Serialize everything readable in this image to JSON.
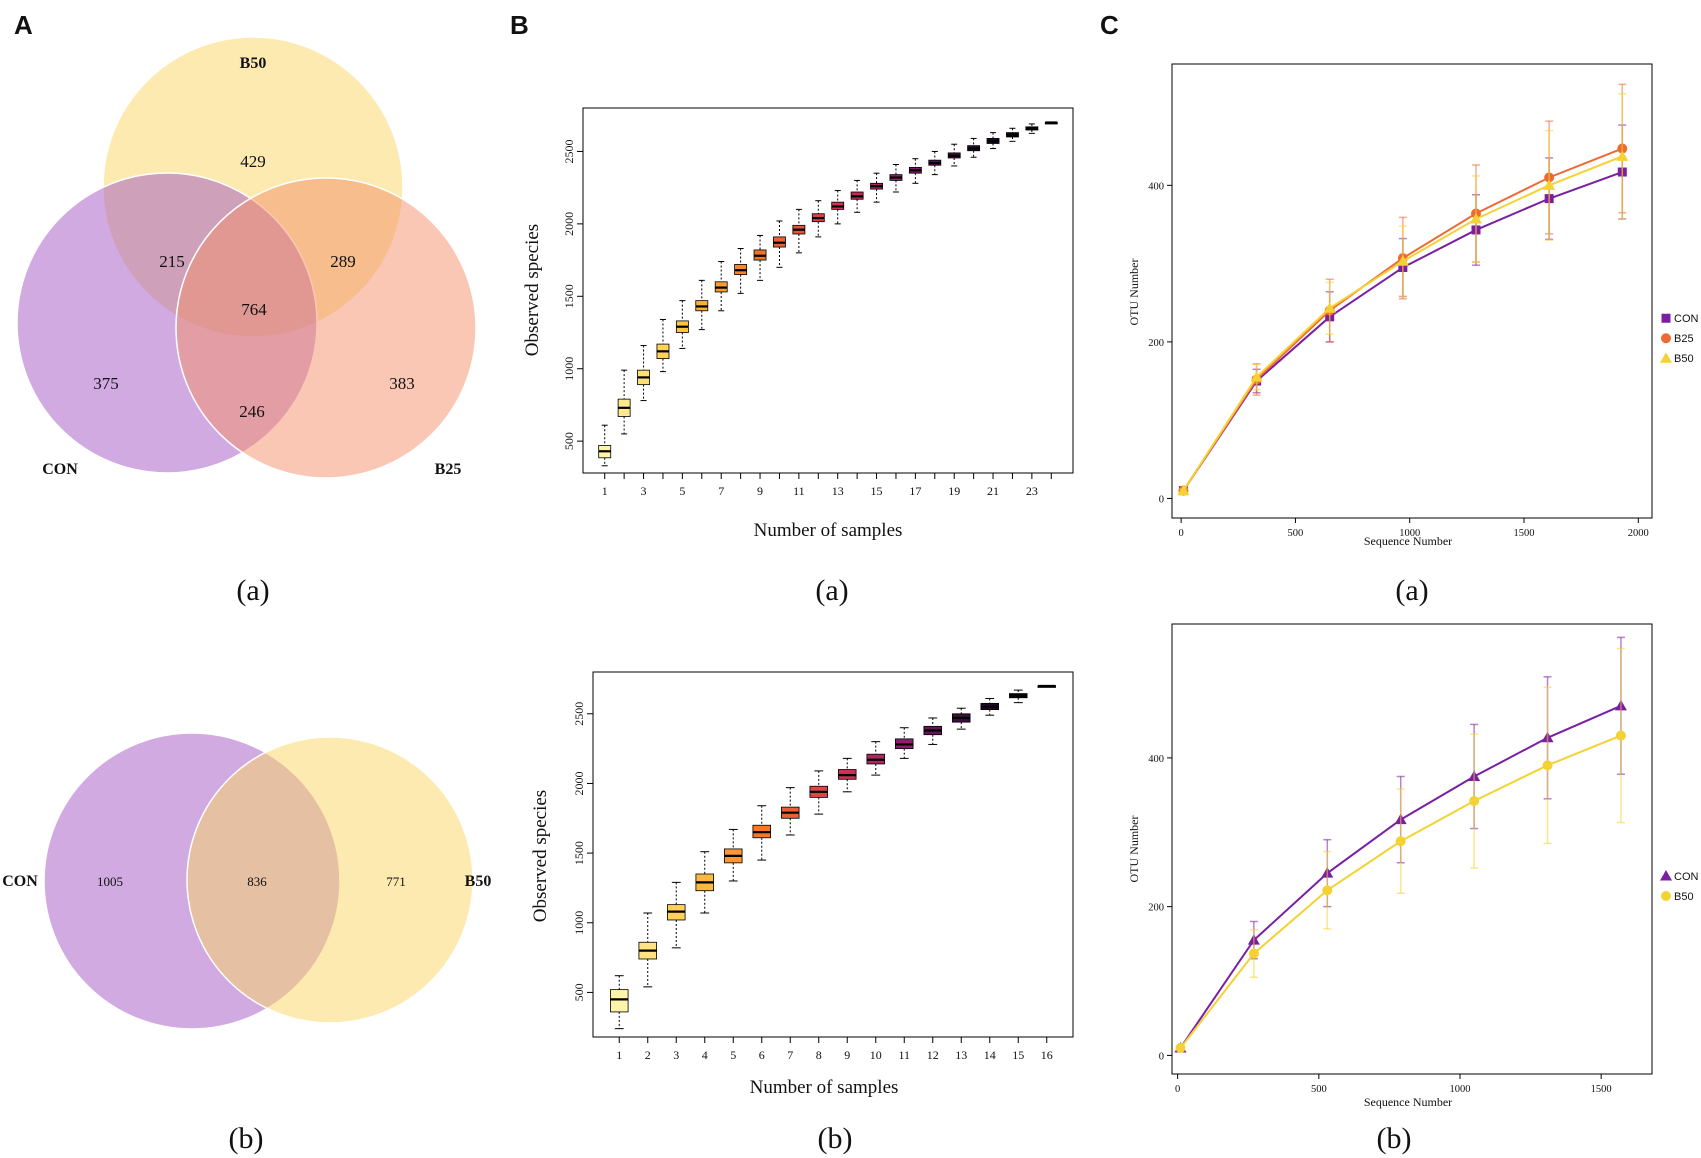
{
  "panel_labels": {
    "A": "A",
    "B": "B",
    "C": "C"
  },
  "sub_labels": {
    "a": "(a)",
    "b": "(b)"
  },
  "chart_data": [
    {
      "id": "A_a",
      "type": "venn",
      "sets": [
        "CON",
        "B50",
        "B25"
      ],
      "regions": {
        "B50_only": 429,
        "CON_only": 375,
        "B25_only": 383,
        "CON_B50": 215,
        "B50_B25": 289,
        "CON_B25": 246,
        "all": 764
      },
      "colors": {
        "CON": "#a156c4",
        "B50": "#fbd563",
        "B25": "#f4906a"
      }
    },
    {
      "id": "A_b",
      "type": "venn",
      "sets": [
        "CON",
        "B50"
      ],
      "regions": {
        "CON_only": 1005,
        "both": 836,
        "B50_only": 771
      },
      "colors": {
        "CON": "#a156c4",
        "B50": "#fbd563"
      }
    },
    {
      "id": "B_a",
      "type": "box",
      "xlabel": "Number of samples",
      "ylabel": "Observed species",
      "x": [
        1,
        2,
        3,
        4,
        5,
        6,
        7,
        8,
        9,
        10,
        11,
        12,
        13,
        14,
        15,
        16,
        17,
        18,
        19,
        20,
        21,
        22,
        23,
        24
      ],
      "xticks": [
        1,
        3,
        5,
        7,
        9,
        11,
        13,
        15,
        17,
        19,
        21,
        23
      ],
      "yticks": [
        500,
        1000,
        1500,
        2000,
        2500
      ],
      "ylim": [
        280,
        2800
      ],
      "median": [
        430,
        730,
        940,
        1120,
        1290,
        1430,
        1560,
        1680,
        1780,
        1870,
        1960,
        2040,
        2120,
        2190,
        2260,
        2320,
        2370,
        2420,
        2470,
        2520,
        2570,
        2610,
        2660,
        2700
      ],
      "q1": [
        385,
        670,
        890,
        1070,
        1250,
        1400,
        1530,
        1650,
        1750,
        1840,
        1930,
        2015,
        2100,
        2170,
        2240,
        2300,
        2350,
        2405,
        2455,
        2505,
        2555,
        2600,
        2648,
        2700
      ],
      "q3": [
        470,
        790,
        990,
        1170,
        1330,
        1470,
        1600,
        1720,
        1820,
        1910,
        1990,
        2070,
        2150,
        2220,
        2280,
        2340,
        2390,
        2440,
        2490,
        2540,
        2590,
        2630,
        2670,
        2700
      ],
      "wlo": [
        330,
        550,
        780,
        980,
        1140,
        1270,
        1400,
        1520,
        1610,
        1700,
        1800,
        1910,
        2000,
        2080,
        2150,
        2220,
        2280,
        2340,
        2400,
        2460,
        2520,
        2570,
        2625,
        2700
      ],
      "whi": [
        610,
        990,
        1160,
        1340,
        1470,
        1610,
        1740,
        1830,
        1920,
        2020,
        2100,
        2160,
        2230,
        2300,
        2350,
        2410,
        2450,
        2500,
        2550,
        2590,
        2630,
        2660,
        2690,
        2700
      ]
    },
    {
      "id": "B_b",
      "type": "box",
      "xlabel": "Number of samples",
      "ylabel": "Observed species",
      "x": [
        1,
        2,
        3,
        4,
        5,
        6,
        7,
        8,
        9,
        10,
        11,
        12,
        13,
        14,
        15,
        16
      ],
      "xticks": [
        1,
        2,
        3,
        4,
        5,
        6,
        7,
        8,
        9,
        10,
        11,
        12,
        13,
        14,
        15,
        16
      ],
      "yticks": [
        500,
        1000,
        1500,
        2000,
        2500
      ],
      "ylim": [
        180,
        2800
      ],
      "median": [
        450,
        800,
        1080,
        1290,
        1480,
        1650,
        1790,
        1940,
        2060,
        2170,
        2280,
        2380,
        2470,
        2550,
        2630,
        2700
      ],
      "q1": [
        360,
        740,
        1020,
        1230,
        1430,
        1610,
        1750,
        1900,
        2030,
        2140,
        2250,
        2350,
        2440,
        2530,
        2615,
        2700
      ],
      "q3": [
        520,
        860,
        1130,
        1350,
        1530,
        1700,
        1830,
        1980,
        2100,
        2210,
        2320,
        2410,
        2500,
        2575,
        2645,
        2700
      ],
      "wlo": [
        240,
        540,
        820,
        1070,
        1300,
        1450,
        1630,
        1780,
        1940,
        2060,
        2180,
        2280,
        2390,
        2490,
        2580,
        2700
      ],
      "whi": [
        620,
        1070,
        1290,
        1510,
        1670,
        1840,
        1970,
        2090,
        2180,
        2300,
        2400,
        2470,
        2540,
        2610,
        2670,
        2700
      ]
    },
    {
      "id": "C_a",
      "type": "line",
      "xlabel": "Sequence Number",
      "ylabel": "OTU Number",
      "xticks": [
        0,
        500,
        1000,
        1500,
        2000
      ],
      "yticks": [
        0,
        200,
        400
      ],
      "xlim": [
        -40,
        2060
      ],
      "ylim": [
        -25,
        555
      ],
      "legend_position": "right",
      "series": [
        {
          "name": "CON",
          "color": "#7b1fa2",
          "marker": "square",
          "x": [
            10,
            330,
            650,
            970,
            1290,
            1610,
            1930
          ],
          "y": [
            10,
            150,
            232,
            295,
            343,
            383,
            417
          ],
          "err": [
            2,
            15,
            32,
            37,
            45,
            52,
            60
          ]
        },
        {
          "name": "B25",
          "color": "#ee6a35",
          "marker": "circle",
          "x": [
            10,
            330,
            650,
            970,
            1290,
            1610,
            1930
          ],
          "y": [
            10,
            152,
            240,
            307,
            364,
            410,
            447
          ],
          "err": [
            2,
            20,
            40,
            52,
            62,
            72,
            82
          ]
        },
        {
          "name": "B50",
          "color": "#f5d233",
          "marker": "triangle",
          "x": [
            10,
            330,
            650,
            970,
            1290,
            1610,
            1930
          ],
          "y": [
            10,
            155,
            243,
            303,
            357,
            400,
            437
          ],
          "err": [
            2,
            16,
            33,
            45,
            55,
            70,
            80
          ]
        }
      ]
    },
    {
      "id": "C_b",
      "type": "line",
      "xlabel": "Sequence Number",
      "ylabel": "OTU Number",
      "xticks": [
        0,
        500,
        1000,
        1500
      ],
      "yticks": [
        0,
        200,
        400
      ],
      "xlim": [
        -20,
        1680
      ],
      "ylim": [
        -25,
        580
      ],
      "legend_position": "right",
      "series": [
        {
          "name": "CON",
          "color": "#7b1fa2",
          "marker": "triangle",
          "x": [
            10,
            270,
            530,
            790,
            1050,
            1310,
            1570
          ],
          "y": [
            10,
            155,
            245,
            317,
            375,
            427,
            470
          ],
          "err": [
            2,
            25,
            45,
            58,
            70,
            82,
            92
          ]
        },
        {
          "name": "B50",
          "color": "#f5d233",
          "marker": "circle",
          "x": [
            10,
            270,
            530,
            790,
            1050,
            1310,
            1570
          ],
          "y": [
            10,
            137,
            222,
            288,
            342,
            390,
            430
          ],
          "err": [
            2,
            32,
            52,
            70,
            90,
            105,
            117
          ]
        }
      ]
    }
  ]
}
